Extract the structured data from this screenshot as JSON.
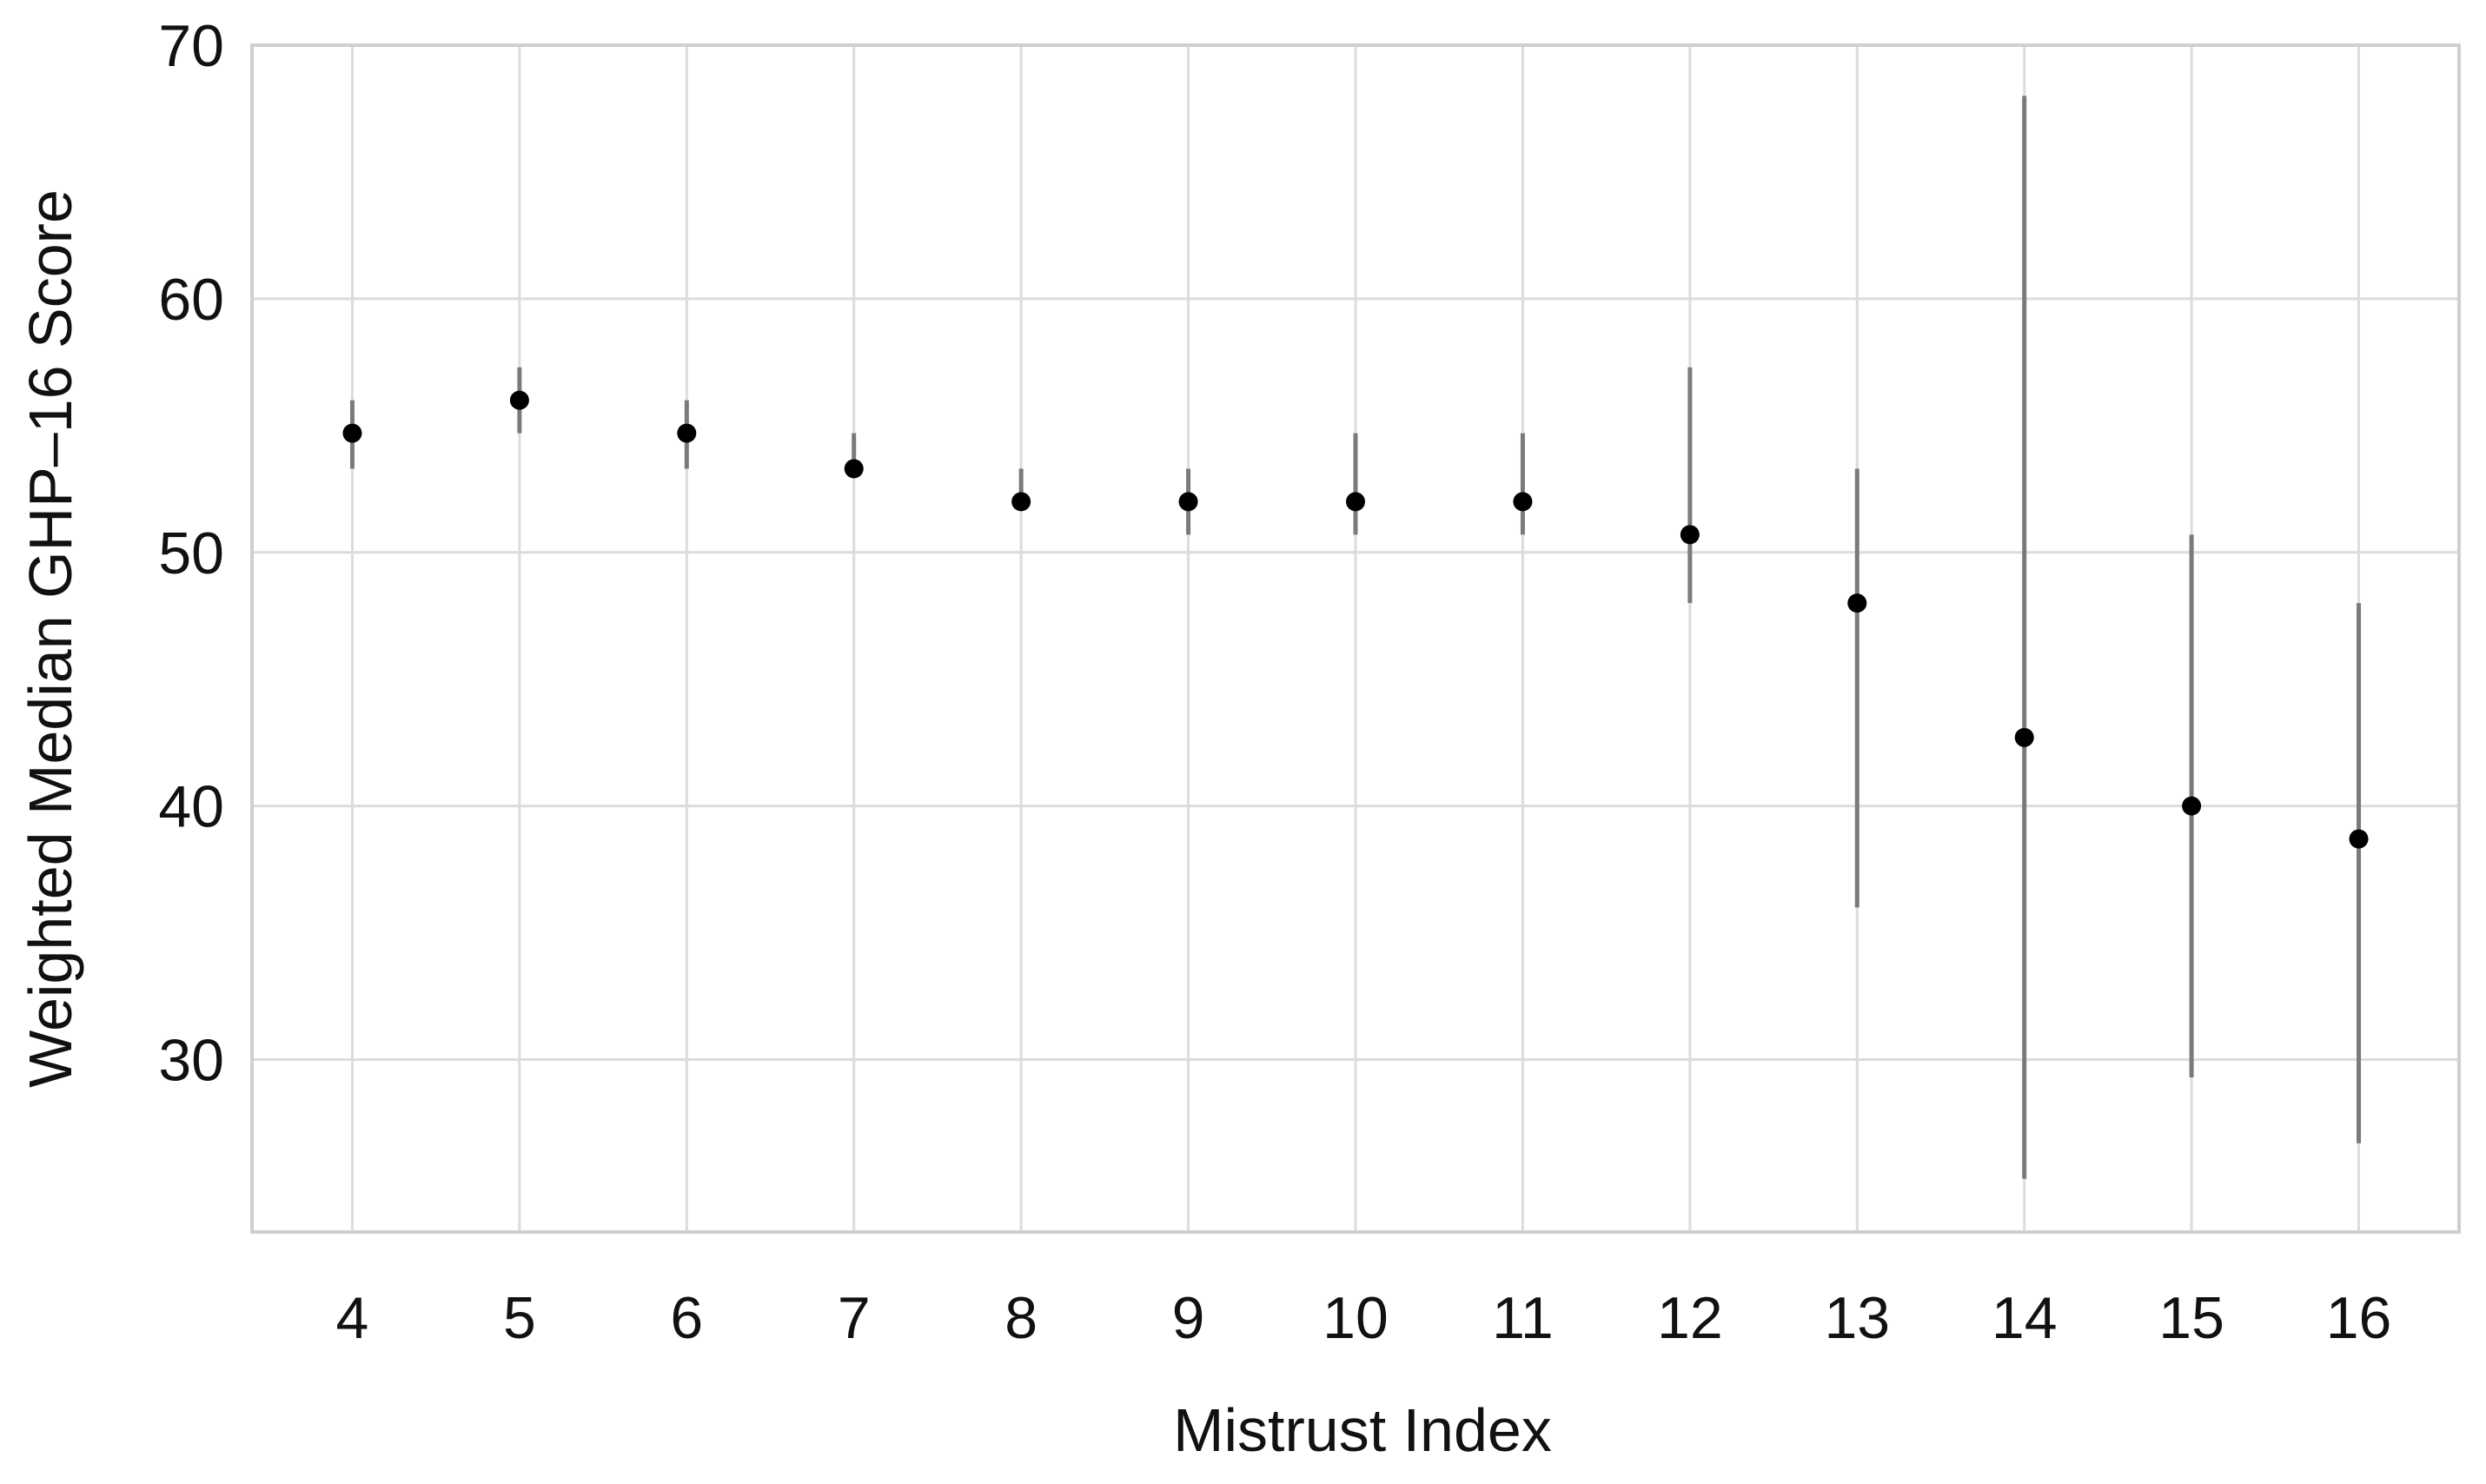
{
  "chart_data": {
    "type": "scatter",
    "title": "",
    "xlabel": "Mistrust Index",
    "ylabel": "Weighted Median GHP–16 Score",
    "x": [
      4,
      5,
      6,
      7,
      8,
      9,
      10,
      11,
      12,
      13,
      14,
      15,
      16
    ],
    "y": [
      54.7,
      56.0,
      54.7,
      53.3,
      52.0,
      52.0,
      52.0,
      52.0,
      50.7,
      48.0,
      42.7,
      40.0,
      38.7
    ],
    "y_lower": [
      53.3,
      54.7,
      53.3,
      53.3,
      52.0,
      50.7,
      50.7,
      50.7,
      48.0,
      36.0,
      25.3,
      29.3,
      26.7
    ],
    "y_upper": [
      56.0,
      57.3,
      56.0,
      54.7,
      53.3,
      53.3,
      54.7,
      54.7,
      57.3,
      53.3,
      68.0,
      50.7,
      48.0
    ],
    "xlim": [
      3.4,
      16.6
    ],
    "ylim": [
      23.2,
      70
    ],
    "x_ticks": [
      "4",
      "5",
      "6",
      "7",
      "8",
      "9",
      "10",
      "11",
      "12",
      "13",
      "14",
      "15",
      "16"
    ],
    "y_ticks": [
      "30",
      "40",
      "50",
      "60",
      "70"
    ],
    "grid": true,
    "colors": {
      "point": "#000000",
      "error_bar": "#7a7a7a",
      "grid": "#dcdcdc",
      "frame": "#cfcfcf"
    }
  }
}
